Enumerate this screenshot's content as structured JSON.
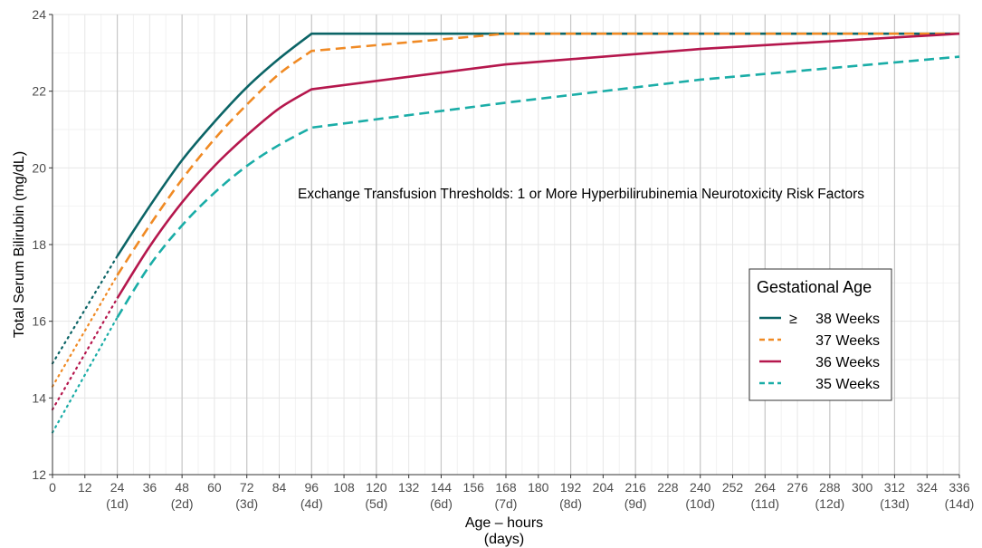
{
  "chart_data": {
    "type": "line",
    "title": "",
    "annotation": "Exchange Transfusion Thresholds:  1 or More Hyperbilirubinemia Neurotoxicity Risk Factors",
    "xlabel": "Age – hours",
    "xlabel2": "(days)",
    "ylabel": "Total Serum Bilirubin (mg/dL)",
    "xlim": [
      0,
      336
    ],
    "ylim": [
      12,
      24
    ],
    "x_ticks": [
      0,
      12,
      24,
      36,
      48,
      60,
      72,
      84,
      96,
      108,
      120,
      132,
      144,
      156,
      168,
      180,
      192,
      204,
      216,
      228,
      240,
      252,
      264,
      276,
      288,
      300,
      312,
      324,
      336
    ],
    "x_day_labels": [
      {
        "x": 24,
        "label": "(1d)"
      },
      {
        "x": 48,
        "label": "(2d)"
      },
      {
        "x": 72,
        "label": "(3d)"
      },
      {
        "x": 96,
        "label": "(4d)"
      },
      {
        "x": 120,
        "label": "(5d)"
      },
      {
        "x": 144,
        "label": "(6d)"
      },
      {
        "x": 168,
        "label": "(7d)"
      },
      {
        "x": 192,
        "label": "(8d)"
      },
      {
        "x": 216,
        "label": "(9d)"
      },
      {
        "x": 240,
        "label": "(10d)"
      },
      {
        "x": 264,
        "label": "(11d)"
      },
      {
        "x": 288,
        "label": "(12d)"
      },
      {
        "x": 312,
        "label": "(13d)"
      },
      {
        "x": 336,
        "label": "(14d)"
      }
    ],
    "y_ticks": [
      12,
      14,
      16,
      18,
      20,
      22,
      24
    ],
    "grid": true,
    "legend": {
      "title": "Gestational Age",
      "position": "right",
      "entries": [
        {
          "symbol": "≥",
          "label": "38 Weeks"
        },
        {
          "symbol": "",
          "label": "37 Weeks"
        },
        {
          "symbol": "",
          "label": "36 Weeks"
        },
        {
          "symbol": "",
          "label": "35 Weeks"
        }
      ]
    },
    "series": [
      {
        "name": "≥ 38 Weeks",
        "color": "#0b6466",
        "dash": "solid",
        "dotted": {
          "x": [
            0,
            24
          ],
          "y": [
            14.9,
            17.7
          ]
        },
        "x": [
          24,
          36,
          48,
          60,
          72,
          84,
          96,
          168,
          336
        ],
        "y": [
          17.7,
          19.0,
          20.2,
          21.2,
          22.1,
          22.85,
          23.5,
          23.5,
          23.5
        ]
      },
      {
        "name": "37 Weeks",
        "color": "#f08a24",
        "dash": "dashed",
        "dotted": {
          "x": [
            0,
            24
          ],
          "y": [
            14.3,
            17.2
          ]
        },
        "x": [
          24,
          36,
          48,
          60,
          72,
          84,
          96,
          168,
          336
        ],
        "y": [
          17.2,
          18.5,
          19.7,
          20.75,
          21.65,
          22.45,
          23.05,
          23.5,
          23.5
        ]
      },
      {
        "name": "36 Weeks",
        "color": "#b5174d",
        "dash": "solid",
        "dotted": {
          "x": [
            0,
            24
          ],
          "y": [
            13.7,
            16.6
          ]
        },
        "x": [
          24,
          36,
          48,
          60,
          72,
          84,
          96,
          168,
          240,
          336
        ],
        "y": [
          16.6,
          17.95,
          19.1,
          20.05,
          20.85,
          21.55,
          22.05,
          22.7,
          23.1,
          23.5
        ]
      },
      {
        "name": "35 Weeks",
        "color": "#1aada7",
        "dash": "dashed",
        "dotted": {
          "x": [
            0,
            24
          ],
          "y": [
            13.1,
            16.1
          ]
        },
        "x": [
          24,
          36,
          48,
          60,
          72,
          84,
          96,
          168,
          240,
          336
        ],
        "y": [
          16.1,
          17.45,
          18.5,
          19.35,
          20.05,
          20.6,
          21.05,
          21.7,
          22.3,
          22.9
        ]
      }
    ]
  }
}
